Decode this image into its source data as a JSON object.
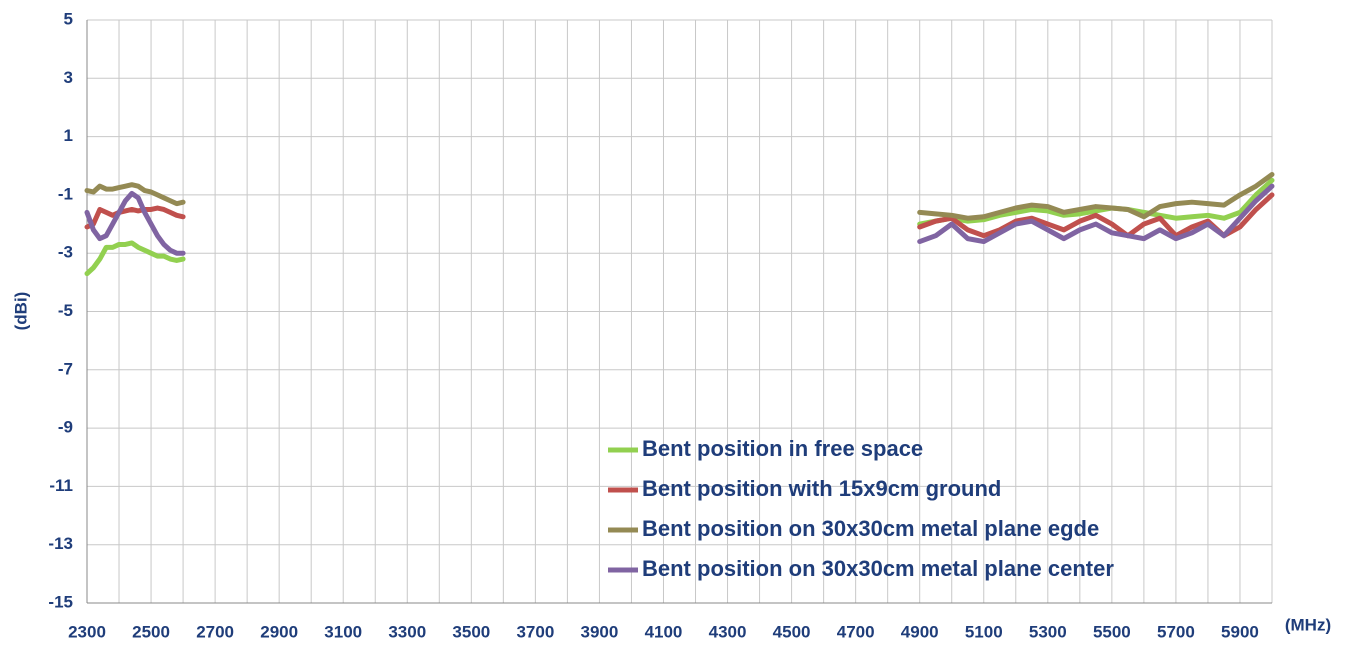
{
  "chart_data": {
    "type": "line",
    "ylabel": "(dBi)",
    "xlabel": "(MHz)",
    "x": [
      2300,
      2320,
      2340,
      2360,
      2380,
      2400,
      2420,
      2440,
      2460,
      2480,
      2500,
      2520,
      2540,
      2560,
      2580,
      2600,
      3750,
      4900,
      4950,
      5000,
      5050,
      5100,
      5150,
      5200,
      5250,
      5300,
      5350,
      5400,
      5450,
      5500,
      5550,
      5600,
      5650,
      5700,
      5750,
      5800,
      5850,
      5900,
      5950,
      6000
    ],
    "series": [
      {
        "name": "Bent position in free space",
        "color": "#92d050",
        "values": [
          -3.7,
          -3.5,
          -3.2,
          -2.8,
          -2.8,
          -2.7,
          -2.7,
          -2.65,
          -2.8,
          -2.9,
          -3.0,
          -3.1,
          -3.1,
          -3.2,
          -3.25,
          -3.2,
          null,
          -2.0,
          -1.9,
          -1.8,
          -1.9,
          -1.85,
          -1.7,
          -1.6,
          -1.5,
          -1.55,
          -1.7,
          -1.65,
          -1.55,
          -1.45,
          -1.5,
          -1.6,
          -1.7,
          -1.8,
          -1.75,
          -1.7,
          -1.8,
          -1.6,
          -1.0,
          -0.5
        ]
      },
      {
        "name": "Bent position with 15x9cm ground",
        "color": "#c0504d",
        "values": [
          -2.1,
          -2.0,
          -1.5,
          -1.6,
          -1.7,
          -1.6,
          -1.55,
          -1.5,
          -1.55,
          -1.5,
          -1.5,
          -1.45,
          -1.5,
          -1.6,
          -1.7,
          -1.75,
          null,
          -2.1,
          -1.9,
          -1.8,
          -2.2,
          -2.4,
          -2.2,
          -1.9,
          -1.8,
          -2.0,
          -2.2,
          -1.9,
          -1.7,
          -2.0,
          -2.4,
          -2.0,
          -1.8,
          -2.4,
          -2.1,
          -1.9,
          -2.4,
          -2.1,
          -1.5,
          -1.0
        ]
      },
      {
        "name": "Bent position on 30x30cm metal plane egde",
        "color": "#948a54",
        "values": [
          -0.85,
          -0.9,
          -0.7,
          -0.8,
          -0.8,
          -0.75,
          -0.7,
          -0.65,
          -0.7,
          -0.85,
          -0.9,
          -1.0,
          -1.1,
          -1.2,
          -1.3,
          -1.25,
          null,
          -1.6,
          -1.65,
          -1.7,
          -1.8,
          -1.75,
          -1.6,
          -1.45,
          -1.35,
          -1.4,
          -1.6,
          -1.5,
          -1.4,
          -1.45,
          -1.5,
          -1.75,
          -1.4,
          -1.3,
          -1.25,
          -1.3,
          -1.35,
          -1.0,
          -0.7,
          -0.3
        ]
      },
      {
        "name": "Bent position on 30x30cm metal plane center",
        "color": "#8064a2",
        "values": [
          -1.6,
          -2.2,
          -2.5,
          -2.4,
          -2.0,
          -1.6,
          -1.2,
          -0.95,
          -1.1,
          -1.6,
          -2.0,
          -2.4,
          -2.7,
          -2.9,
          -3.0,
          -3.0,
          null,
          -2.6,
          -2.4,
          -2.0,
          -2.5,
          -2.6,
          -2.3,
          -2.0,
          -1.9,
          -2.2,
          -2.5,
          -2.2,
          -2.0,
          -2.3,
          -2.4,
          -2.5,
          -2.2,
          -2.5,
          -2.3,
          -2.0,
          -2.4,
          -1.8,
          -1.2,
          -0.7
        ]
      }
    ],
    "xlim": [
      2300,
      6000
    ],
    "xticks": [
      2300,
      2500,
      2700,
      2900,
      3100,
      3300,
      3500,
      3700,
      3900,
      4100,
      4300,
      4500,
      4700,
      4900,
      5100,
      5300,
      5500,
      5700,
      5900
    ],
    "xgrid": [
      2300,
      2400,
      2500,
      2600,
      2700,
      2800,
      2900,
      3000,
      3100,
      3200,
      3300,
      3400,
      3500,
      3600,
      3700,
      3800,
      3900,
      4000,
      4100,
      4200,
      4300,
      4400,
      4500,
      4600,
      4700,
      4800,
      4900,
      5000,
      5100,
      5200,
      5300,
      5400,
      5500,
      5600,
      5700,
      5800,
      5900,
      6000
    ],
    "ylim": [
      -15,
      5
    ],
    "yticks": [
      5,
      3,
      1,
      -1,
      -3,
      -5,
      -7,
      -9,
      -11,
      -13,
      -15
    ],
    "grid": true,
    "legend": "lower right"
  }
}
